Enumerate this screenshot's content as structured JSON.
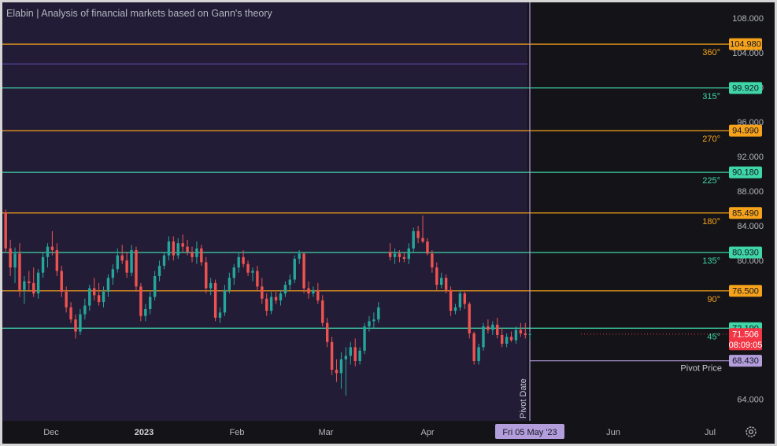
{
  "title": "Elabin | Analysis of financial markets based on Gann's theory",
  "colors": {
    "orange": "#f7a21b",
    "teal": "#3fd6a8",
    "up": "#26a69a",
    "down": "#ef5350",
    "pivot": "#b39ddb",
    "plot_bg": "#221c36",
    "axis_bg": "#141418"
  },
  "price_axis": {
    "min": 61.5,
    "max": 109.8,
    "ticks": [
      "108.000",
      "104.000",
      "100.000",
      "96.000",
      "92.000",
      "88.000",
      "84.000",
      "80.000",
      "64.000"
    ]
  },
  "time_axis": {
    "labels": [
      {
        "text": "Dec",
        "bold": false
      },
      {
        "text": "2023",
        "bold": true
      },
      {
        "text": "Feb",
        "bold": false
      },
      {
        "text": "Mar",
        "bold": false
      },
      {
        "text": "Apr",
        "bold": false
      },
      {
        "text": "Jun",
        "bold": false
      },
      {
        "text": "Jul",
        "bold": false
      }
    ],
    "pivot_date_badge": "Fri 05 May '23"
  },
  "gann_levels": [
    {
      "angle": "360°",
      "price": 104.98,
      "label": "104.980",
      "color": "orange"
    },
    {
      "angle": "315°",
      "price": 99.92,
      "label": "99.920",
      "color": "teal"
    },
    {
      "angle": "270°",
      "price": 94.99,
      "label": "94.990",
      "color": "orange"
    },
    {
      "angle": "225°",
      "price": 90.18,
      "label": "90.180",
      "color": "teal"
    },
    {
      "angle": "180°",
      "price": 85.49,
      "label": "85.490",
      "color": "orange"
    },
    {
      "angle": "135°",
      "price": 80.93,
      "label": "80.930",
      "color": "teal"
    },
    {
      "angle": "90°",
      "price": 76.5,
      "label": "76.500",
      "color": "orange"
    },
    {
      "angle": "45°",
      "price": 72.19,
      "label": "72.190",
      "color": "teal"
    }
  ],
  "current_price": {
    "value": 71.506,
    "label": "71.506",
    "countdown": "08:09:05"
  },
  "pivot": {
    "price": 68.43,
    "price_label": "68.430",
    "price_text": "Pivot Price",
    "date_text": "Pivot Date"
  },
  "chart_data": {
    "type": "candlestick",
    "candles": [
      {
        "o": 85.5,
        "h": 85.9,
        "l": 80.9,
        "c": 81.4
      },
      {
        "o": 81.4,
        "h": 82.4,
        "l": 78.2,
        "c": 79.2
      },
      {
        "o": 79.2,
        "h": 81.5,
        "l": 77.4,
        "c": 80.8
      },
      {
        "o": 80.8,
        "h": 82.0,
        "l": 75.8,
        "c": 76.6
      },
      {
        "o": 76.6,
        "h": 78.2,
        "l": 75.0,
        "c": 77.6
      },
      {
        "o": 77.6,
        "h": 78.8,
        "l": 76.4,
        "c": 77.4
      },
      {
        "o": 77.4,
        "h": 79.2,
        "l": 75.8,
        "c": 76.2
      },
      {
        "o": 76.2,
        "h": 79.0,
        "l": 75.6,
        "c": 78.6
      },
      {
        "o": 78.6,
        "h": 80.9,
        "l": 78.0,
        "c": 80.4
      },
      {
        "o": 80.4,
        "h": 82.0,
        "l": 79.2,
        "c": 81.6
      },
      {
        "o": 81.6,
        "h": 83.4,
        "l": 80.6,
        "c": 81.2
      },
      {
        "o": 81.2,
        "h": 82.0,
        "l": 78.2,
        "c": 78.8
      },
      {
        "o": 78.8,
        "h": 79.4,
        "l": 75.8,
        "c": 76.4
      },
      {
        "o": 76.4,
        "h": 77.0,
        "l": 74.0,
        "c": 74.6
      },
      {
        "o": 74.6,
        "h": 75.2,
        "l": 72.8,
        "c": 73.2
      },
      {
        "o": 73.2,
        "h": 73.8,
        "l": 71.0,
        "c": 71.8
      },
      {
        "o": 71.8,
        "h": 74.4,
        "l": 71.4,
        "c": 73.8
      },
      {
        "o": 73.8,
        "h": 75.6,
        "l": 73.2,
        "c": 74.8
      },
      {
        "o": 74.8,
        "h": 77.2,
        "l": 74.2,
        "c": 76.8
      },
      {
        "o": 76.8,
        "h": 78.0,
        "l": 75.4,
        "c": 76.0
      },
      {
        "o": 76.0,
        "h": 77.4,
        "l": 74.8,
        "c": 75.2
      },
      {
        "o": 75.2,
        "h": 77.0,
        "l": 74.6,
        "c": 76.4
      },
      {
        "o": 76.4,
        "h": 78.4,
        "l": 75.8,
        "c": 78.0
      },
      {
        "o": 78.0,
        "h": 79.6,
        "l": 77.2,
        "c": 79.0
      },
      {
        "o": 79.0,
        "h": 81.4,
        "l": 78.6,
        "c": 80.6
      },
      {
        "o": 80.6,
        "h": 81.8,
        "l": 79.6,
        "c": 80.0
      },
      {
        "o": 80.0,
        "h": 81.0,
        "l": 78.0,
        "c": 78.6
      },
      {
        "o": 78.6,
        "h": 81.8,
        "l": 78.2,
        "c": 81.2
      },
      {
        "o": 81.2,
        "h": 81.6,
        "l": 76.4,
        "c": 77.0
      },
      {
        "o": 77.0,
        "h": 77.4,
        "l": 73.0,
        "c": 73.6
      },
      {
        "o": 73.6,
        "h": 75.0,
        "l": 73.0,
        "c": 74.4
      },
      {
        "o": 74.4,
        "h": 76.4,
        "l": 73.8,
        "c": 75.8
      },
      {
        "o": 75.8,
        "h": 78.8,
        "l": 75.4,
        "c": 78.2
      },
      {
        "o": 78.2,
        "h": 80.0,
        "l": 77.6,
        "c": 79.4
      },
      {
        "o": 79.4,
        "h": 81.0,
        "l": 79.0,
        "c": 80.6
      },
      {
        "o": 80.6,
        "h": 82.8,
        "l": 80.0,
        "c": 82.2
      },
      {
        "o": 82.2,
        "h": 82.8,
        "l": 80.0,
        "c": 80.6
      },
      {
        "o": 80.6,
        "h": 82.6,
        "l": 80.2,
        "c": 82.0
      },
      {
        "o": 82.0,
        "h": 83.0,
        "l": 81.0,
        "c": 81.6
      },
      {
        "o": 81.6,
        "h": 82.4,
        "l": 80.6,
        "c": 81.0
      },
      {
        "o": 81.0,
        "h": 81.6,
        "l": 79.8,
        "c": 80.4
      },
      {
        "o": 80.4,
        "h": 82.2,
        "l": 79.6,
        "c": 81.4
      },
      {
        "o": 81.4,
        "h": 81.8,
        "l": 79.4,
        "c": 79.8
      },
      {
        "o": 79.8,
        "h": 80.4,
        "l": 76.2,
        "c": 76.8
      },
      {
        "o": 76.8,
        "h": 78.0,
        "l": 76.0,
        "c": 77.4
      },
      {
        "o": 77.4,
        "h": 77.8,
        "l": 73.0,
        "c": 73.4
      },
      {
        "o": 73.4,
        "h": 74.6,
        "l": 72.8,
        "c": 74.0
      },
      {
        "o": 74.0,
        "h": 77.2,
        "l": 73.6,
        "c": 76.6
      },
      {
        "o": 76.6,
        "h": 78.6,
        "l": 76.2,
        "c": 78.0
      },
      {
        "o": 78.0,
        "h": 79.6,
        "l": 77.2,
        "c": 79.2
      },
      {
        "o": 79.2,
        "h": 81.0,
        "l": 78.6,
        "c": 80.4
      },
      {
        "o": 80.4,
        "h": 81.2,
        "l": 79.2,
        "c": 79.6
      },
      {
        "o": 79.6,
        "h": 80.0,
        "l": 78.2,
        "c": 78.6
      },
      {
        "o": 78.6,
        "h": 79.2,
        "l": 77.6,
        "c": 78.8
      },
      {
        "o": 78.8,
        "h": 79.4,
        "l": 76.6,
        "c": 77.0
      },
      {
        "o": 77.0,
        "h": 78.0,
        "l": 75.0,
        "c": 75.6
      },
      {
        "o": 75.6,
        "h": 76.2,
        "l": 73.6,
        "c": 74.2
      },
      {
        "o": 74.2,
        "h": 76.4,
        "l": 73.8,
        "c": 75.8
      },
      {
        "o": 75.8,
        "h": 76.4,
        "l": 75.0,
        "c": 75.4
      },
      {
        "o": 75.4,
        "h": 76.6,
        "l": 74.8,
        "c": 76.2
      },
      {
        "o": 76.2,
        "h": 77.6,
        "l": 75.8,
        "c": 77.2
      },
      {
        "o": 77.2,
        "h": 78.4,
        "l": 76.6,
        "c": 77.8
      },
      {
        "o": 77.8,
        "h": 80.6,
        "l": 77.4,
        "c": 80.2
      },
      {
        "o": 80.2,
        "h": 81.2,
        "l": 79.6,
        "c": 80.8
      },
      {
        "o": 80.8,
        "h": 80.9,
        "l": 76.2,
        "c": 76.8
      },
      {
        "o": 76.8,
        "h": 77.6,
        "l": 75.6,
        "c": 76.2
      },
      {
        "o": 76.2,
        "h": 77.0,
        "l": 75.8,
        "c": 76.6
      },
      {
        "o": 76.6,
        "h": 77.4,
        "l": 75.0,
        "c": 75.4
      },
      {
        "o": 75.4,
        "h": 76.0,
        "l": 72.4,
        "c": 72.8
      },
      {
        "o": 72.8,
        "h": 73.4,
        "l": 70.0,
        "c": 70.6
      },
      {
        "o": 70.6,
        "h": 71.2,
        "l": 66.8,
        "c": 67.4
      },
      {
        "o": 67.4,
        "h": 68.6,
        "l": 66.0,
        "c": 67.0
      },
      {
        "o": 67.0,
        "h": 69.4,
        "l": 65.2,
        "c": 68.6
      },
      {
        "o": 68.6,
        "h": 70.0,
        "l": 64.4,
        "c": 69.0
      },
      {
        "o": 69.0,
        "h": 70.6,
        "l": 68.0,
        "c": 70.0
      },
      {
        "o": 70.0,
        "h": 71.0,
        "l": 67.8,
        "c": 68.4
      },
      {
        "o": 68.4,
        "h": 70.0,
        "l": 68.0,
        "c": 69.6
      },
      {
        "o": 69.6,
        "h": 72.8,
        "l": 69.2,
        "c": 72.4
      },
      {
        "o": 72.4,
        "h": 73.6,
        "l": 71.8,
        "c": 73.0
      },
      {
        "o": 73.0,
        "h": 74.0,
        "l": 72.2,
        "c": 73.2
      },
      {
        "o": 73.2,
        "h": 75.2,
        "l": 72.8,
        "c": 74.6
      },
      {
        "o": 81.0,
        "h": 82.0,
        "l": 80.0,
        "c": 80.4
      },
      {
        "o": 80.4,
        "h": 81.4,
        "l": 79.6,
        "c": 80.8
      },
      {
        "o": 80.8,
        "h": 81.2,
        "l": 79.8,
        "c": 80.4
      },
      {
        "o": 80.4,
        "h": 81.0,
        "l": 79.8,
        "c": 80.2
      },
      {
        "o": 80.2,
        "h": 82.0,
        "l": 79.6,
        "c": 81.4
      },
      {
        "o": 81.4,
        "h": 83.8,
        "l": 81.0,
        "c": 83.4
      },
      {
        "o": 83.4,
        "h": 84.0,
        "l": 82.0,
        "c": 82.6
      },
      {
        "o": 82.6,
        "h": 85.2,
        "l": 82.0,
        "c": 82.2
      },
      {
        "o": 82.2,
        "h": 82.6,
        "l": 80.6,
        "c": 80.8
      },
      {
        "o": 80.8,
        "h": 81.2,
        "l": 78.6,
        "c": 79.2
      },
      {
        "o": 79.2,
        "h": 79.8,
        "l": 76.6,
        "c": 77.2
      },
      {
        "o": 77.2,
        "h": 78.6,
        "l": 76.8,
        "c": 78.0
      },
      {
        "o": 78.0,
        "h": 78.4,
        "l": 76.2,
        "c": 76.6
      },
      {
        "o": 76.6,
        "h": 77.0,
        "l": 73.6,
        "c": 74.2
      },
      {
        "o": 74.2,
        "h": 75.0,
        "l": 73.8,
        "c": 74.6
      },
      {
        "o": 74.6,
        "h": 76.6,
        "l": 74.2,
        "c": 76.2
      },
      {
        "o": 76.2,
        "h": 76.4,
        "l": 74.4,
        "c": 75.0
      },
      {
        "o": 75.0,
        "h": 75.2,
        "l": 71.0,
        "c": 71.6
      },
      {
        "o": 71.6,
        "h": 71.8,
        "l": 68.0,
        "c": 68.4
      },
      {
        "o": 68.4,
        "h": 70.4,
        "l": 68.0,
        "c": 70.0
      },
      {
        "o": 70.0,
        "h": 72.8,
        "l": 69.6,
        "c": 72.4
      },
      {
        "o": 72.4,
        "h": 73.2,
        "l": 71.6,
        "c": 72.0
      },
      {
        "o": 72.0,
        "h": 73.0,
        "l": 71.4,
        "c": 72.6
      },
      {
        "o": 72.6,
        "h": 73.4,
        "l": 71.0,
        "c": 71.4
      },
      {
        "o": 71.4,
        "h": 72.2,
        "l": 70.0,
        "c": 70.4
      },
      {
        "o": 70.4,
        "h": 71.6,
        "l": 70.0,
        "c": 71.2
      },
      {
        "o": 71.2,
        "h": 71.8,
        "l": 70.6,
        "c": 70.8
      },
      {
        "o": 70.8,
        "h": 72.4,
        "l": 70.4,
        "c": 72.0
      },
      {
        "o": 72.0,
        "h": 72.8,
        "l": 71.2,
        "c": 71.6
      },
      {
        "o": 71.6,
        "h": 72.8,
        "l": 71.0,
        "c": 71.4
      },
      {
        "o": 71.4,
        "h": 71.8,
        "l": 70.8,
        "c": 71.5
      }
    ]
  }
}
